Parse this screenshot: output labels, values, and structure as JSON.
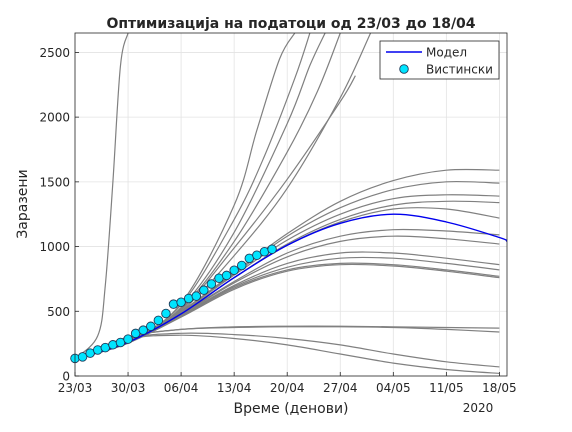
{
  "chart_data": {
    "type": "line",
    "title": "Оптимизација на податоци од 23/03 до 18/04",
    "xlabel": "Време (денови)",
    "ylabel": "Заразени",
    "x_year_label": "2020",
    "xlim": [
      "2020-03-23",
      "2020-05-19"
    ],
    "ylim": [
      0,
      2650
    ],
    "x_ticks": [
      {
        "date": "2020-03-23",
        "label": "23/03"
      },
      {
        "date": "2020-03-30",
        "label": "30/03"
      },
      {
        "date": "2020-04-06",
        "label": "06/04"
      },
      {
        "date": "2020-04-13",
        "label": "13/04"
      },
      {
        "date": "2020-04-20",
        "label": "20/04"
      },
      {
        "date": "2020-04-27",
        "label": "27/04"
      },
      {
        "date": "2020-05-04",
        "label": "04/05"
      },
      {
        "date": "2020-05-11",
        "label": "11/05"
      },
      {
        "date": "2020-05-18",
        "label": "18/05"
      }
    ],
    "y_ticks": [
      0,
      500,
      1000,
      1500,
      2000,
      2500
    ],
    "grid": true,
    "legend_position": "top-right",
    "legend": [
      {
        "label": "Модел",
        "kind": "line",
        "color": "#0000ee"
      },
      {
        "label": "Вистински",
        "kind": "marker",
        "color": "#00e5ff"
      }
    ],
    "colors": {
      "model": "#0000ee",
      "actual_fill": "#00e5ff",
      "actual_edge": "#1f3a5a",
      "ensemble": "#808080"
    },
    "actual": {
      "name": "Вистински",
      "x": [
        "2020-03-23",
        "2020-03-24",
        "2020-03-25",
        "2020-03-26",
        "2020-03-27",
        "2020-03-28",
        "2020-03-29",
        "2020-03-30",
        "2020-03-31",
        "2020-04-01",
        "2020-04-02",
        "2020-04-03",
        "2020-04-04",
        "2020-04-05",
        "2020-04-06",
        "2020-04-07",
        "2020-04-08",
        "2020-04-09",
        "2020-04-10",
        "2020-04-11",
        "2020-04-12",
        "2020-04-13",
        "2020-04-14",
        "2020-04-15",
        "2020-04-16",
        "2020-04-17",
        "2020-04-18"
      ],
      "y": [
        136,
        148,
        177,
        201,
        219,
        241,
        259,
        285,
        329,
        354,
        384,
        430,
        483,
        555,
        570,
        599,
        617,
        663,
        711,
        755,
        777,
        817,
        854,
        909,
        933,
        960,
        979
      ]
    },
    "model": {
      "name": "Модел",
      "x": [
        "2020-03-23",
        "2020-03-30",
        "2020-04-06",
        "2020-04-13",
        "2020-04-20",
        "2020-04-27",
        "2020-05-04",
        "2020-05-11",
        "2020-05-18",
        "2020-05-19"
      ],
      "y": [
        130,
        260,
        480,
        760,
        1010,
        1180,
        1250,
        1190,
        1070,
        1040
      ]
    },
    "ensemble": [
      {
        "x": [
          "2020-03-23",
          "2020-03-26",
          "2020-03-27",
          "2020-03-28",
          "2020-03-29",
          "2020-03-30"
        ],
        "y": [
          135,
          310,
          700,
          1500,
          2400,
          2650
        ]
      },
      {
        "x": [
          "2020-03-23",
          "2020-03-30",
          "2020-04-06",
          "2020-04-13",
          "2020-04-20",
          "2020-04-27",
          "2020-05-04",
          "2020-05-11",
          "2020-05-18"
        ],
        "y": [
          135,
          300,
          360,
          380,
          385,
          385,
          380,
          375,
          370
        ]
      },
      {
        "x": [
          "2020-03-23",
          "2020-03-30",
          "2020-04-06",
          "2020-04-13",
          "2020-04-20",
          "2020-04-27",
          "2020-05-04",
          "2020-05-11",
          "2020-05-18"
        ],
        "y": [
          135,
          300,
          360,
          375,
          380,
          380,
          375,
          360,
          340
        ]
      },
      {
        "x": [
          "2020-03-23",
          "2020-03-30",
          "2020-04-06",
          "2020-04-13",
          "2020-04-20",
          "2020-04-27",
          "2020-05-04",
          "2020-05-11",
          "2020-05-18"
        ],
        "y": [
          135,
          290,
          330,
          320,
          290,
          240,
          170,
          110,
          70
        ]
      },
      {
        "x": [
          "2020-03-23",
          "2020-03-30",
          "2020-04-06",
          "2020-04-13",
          "2020-04-20",
          "2020-04-27",
          "2020-05-04",
          "2020-05-11",
          "2020-05-18"
        ],
        "y": [
          135,
          285,
          315,
          290,
          240,
          170,
          100,
          50,
          20
        ]
      },
      {
        "x": [
          "2020-03-23",
          "2020-03-30",
          "2020-04-06",
          "2020-04-13",
          "2020-04-16",
          "2020-04-19",
          "2020-04-21"
        ],
        "y": [
          135,
          270,
          560,
          1320,
          1900,
          2450,
          2650
        ]
      },
      {
        "x": [
          "2020-03-23",
          "2020-03-30",
          "2020-04-06",
          "2020-04-13",
          "2020-04-17",
          "2020-04-21",
          "2020-04-23"
        ],
        "y": [
          135,
          265,
          550,
          1210,
          1700,
          2300,
          2650
        ]
      },
      {
        "x": [
          "2020-03-23",
          "2020-03-30",
          "2020-04-06",
          "2020-04-13",
          "2020-04-20",
          "2020-04-23",
          "2020-04-25"
        ],
        "y": [
          135,
          262,
          530,
          1110,
          1950,
          2400,
          2650
        ]
      },
      {
        "x": [
          "2020-03-23",
          "2020-03-30",
          "2020-04-06",
          "2020-04-13",
          "2020-04-20",
          "2020-04-24",
          "2020-04-27"
        ],
        "y": [
          135,
          260,
          520,
          1040,
          1730,
          2200,
          2650
        ]
      },
      {
        "x": [
          "2020-03-23",
          "2020-03-30",
          "2020-04-06",
          "2020-04-13",
          "2020-04-20",
          "2020-04-27",
          "2020-04-29"
        ],
        "y": [
          135,
          258,
          510,
          990,
          1520,
          2120,
          2320
        ]
      },
      {
        "x": [
          "2020-03-23",
          "2020-03-30",
          "2020-04-06",
          "2020-04-13",
          "2020-04-20",
          "2020-04-27",
          "2020-05-01"
        ],
        "y": [
          135,
          256,
          500,
          930,
          1450,
          2150,
          2650
        ]
      },
      {
        "x": [
          "2020-03-23",
          "2020-03-30",
          "2020-04-06",
          "2020-04-13",
          "2020-04-20",
          "2020-04-27",
          "2020-05-04",
          "2020-05-11",
          "2020-05-18"
        ],
        "y": [
          135,
          255,
          500,
          800,
          1100,
          1350,
          1510,
          1590,
          1590
        ]
      },
      {
        "x": [
          "2020-03-23",
          "2020-03-30",
          "2020-04-06",
          "2020-04-13",
          "2020-04-20",
          "2020-04-27",
          "2020-05-04",
          "2020-05-11",
          "2020-05-18"
        ],
        "y": [
          135,
          255,
          500,
          790,
          1080,
          1300,
          1440,
          1500,
          1490
        ]
      },
      {
        "x": [
          "2020-03-23",
          "2020-03-30",
          "2020-04-06",
          "2020-04-13",
          "2020-04-20",
          "2020-04-27",
          "2020-05-04",
          "2020-05-11",
          "2020-05-18"
        ],
        "y": [
          135,
          255,
          495,
          780,
          1050,
          1250,
          1370,
          1400,
          1390
        ]
      },
      {
        "x": [
          "2020-03-23",
          "2020-03-30",
          "2020-04-06",
          "2020-04-13",
          "2020-04-20",
          "2020-04-27",
          "2020-05-04",
          "2020-05-11",
          "2020-05-18"
        ],
        "y": [
          135,
          255,
          490,
          760,
          1020,
          1210,
          1320,
          1350,
          1340
        ]
      },
      {
        "x": [
          "2020-03-23",
          "2020-03-30",
          "2020-04-06",
          "2020-04-13",
          "2020-04-20",
          "2020-04-27",
          "2020-05-04",
          "2020-05-11",
          "2020-05-18"
        ],
        "y": [
          135,
          255,
          485,
          760,
          1010,
          1190,
          1290,
          1290,
          1220
        ]
      },
      {
        "x": [
          "2020-03-23",
          "2020-03-30",
          "2020-04-06",
          "2020-04-13",
          "2020-04-20",
          "2020-04-27",
          "2020-05-04",
          "2020-05-11",
          "2020-05-18"
        ],
        "y": [
          135,
          255,
          480,
          730,
          950,
          1080,
          1130,
          1120,
          1090
        ]
      },
      {
        "x": [
          "2020-03-23",
          "2020-03-30",
          "2020-04-06",
          "2020-04-13",
          "2020-04-20",
          "2020-04-27",
          "2020-05-04",
          "2020-05-11",
          "2020-05-18"
        ],
        "y": [
          135,
          255,
          475,
          720,
          920,
          1040,
          1080,
          1060,
          1020
        ]
      },
      {
        "x": [
          "2020-03-23",
          "2020-03-30",
          "2020-04-06",
          "2020-04-13",
          "2020-04-20",
          "2020-04-27",
          "2020-05-04",
          "2020-05-11",
          "2020-05-18"
        ],
        "y": [
          135,
          255,
          470,
          700,
          870,
          950,
          950,
          910,
          860
        ]
      },
      {
        "x": [
          "2020-03-23",
          "2020-03-30",
          "2020-04-06",
          "2020-04-13",
          "2020-04-20",
          "2020-04-27",
          "2020-05-04",
          "2020-05-11",
          "2020-05-18"
        ],
        "y": [
          135,
          255,
          465,
          690,
          840,
          910,
          910,
          870,
          820
        ]
      },
      {
        "x": [
          "2020-03-23",
          "2020-03-30",
          "2020-04-06",
          "2020-04-13",
          "2020-04-20",
          "2020-04-27",
          "2020-05-04",
          "2020-05-11",
          "2020-05-18"
        ],
        "y": [
          135,
          255,
          460,
          680,
          820,
          870,
          860,
          820,
          770
        ]
      },
      {
        "x": [
          "2020-03-23",
          "2020-03-30",
          "2020-04-06",
          "2020-04-13",
          "2020-04-20",
          "2020-04-27",
          "2020-05-04",
          "2020-05-11",
          "2020-05-18"
        ],
        "y": [
          135,
          255,
          455,
          670,
          810,
          860,
          850,
          810,
          760
        ]
      }
    ]
  }
}
